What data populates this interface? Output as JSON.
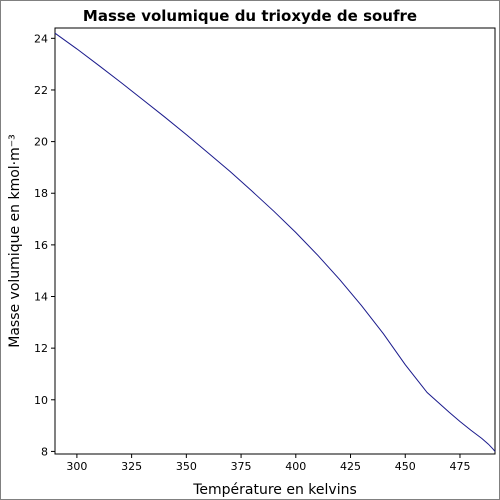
{
  "chart_data": {
    "type": "line",
    "title": "Masse volumique du trioxyde de soufre",
    "xlabel": "Température en kelvins",
    "ylabel": "Masse volumique en kmol·m⁻³",
    "xlim": [
      290,
      491
    ],
    "ylim": [
      7.9,
      24.4
    ],
    "xticks": [
      300,
      325,
      350,
      375,
      400,
      425,
      450,
      475
    ],
    "yticks": [
      8,
      10,
      12,
      14,
      16,
      18,
      20,
      22,
      24
    ],
    "grid": false,
    "legend": "none",
    "series": [
      {
        "color": "#1a1a8c",
        "x": [
          290,
          300,
          310,
          320,
          330,
          340,
          350,
          360,
          370,
          380,
          390,
          400,
          410,
          420,
          430,
          440,
          450,
          460,
          470,
          475,
          480,
          485,
          488,
          490,
          491
        ],
        "y": [
          24.2,
          23.59,
          22.95,
          22.3,
          21.63,
          20.96,
          20.27,
          19.56,
          18.84,
          18.08,
          17.3,
          16.48,
          15.6,
          14.66,
          13.65,
          12.56,
          11.36,
          10.28,
          9.52,
          9.16,
          8.82,
          8.5,
          8.28,
          8.1,
          8.0
        ]
      }
    ]
  }
}
